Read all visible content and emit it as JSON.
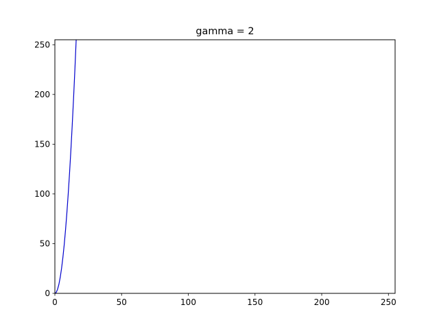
{
  "chart_data": {
    "type": "line",
    "title": "gamma = 2",
    "xlabel": "",
    "ylabel": "",
    "xlim": [
      0,
      255
    ],
    "ylim": [
      0,
      255
    ],
    "x_ticks": [
      0,
      50,
      100,
      150,
      200,
      250
    ],
    "y_ticks": [
      0,
      50,
      100,
      150,
      200,
      250
    ],
    "grid": false,
    "legend": "none",
    "series": [
      {
        "color": "#0000cc",
        "x": [
          0,
          1,
          2,
          3,
          4,
          5,
          6,
          7,
          8,
          9,
          10,
          11,
          12,
          13,
          14,
          15,
          16,
          17
        ],
        "y": [
          0,
          1,
          4,
          9,
          16,
          25,
          36,
          49,
          64,
          81,
          100,
          121,
          144,
          169,
          196,
          225,
          256,
          289
        ]
      }
    ]
  }
}
